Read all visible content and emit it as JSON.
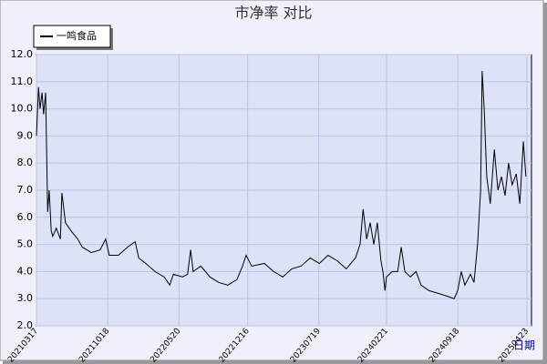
{
  "chart_data": {
    "type": "line",
    "title": "市净率  对比",
    "x_label": "日期",
    "x": [
      0,
      4,
      7,
      11,
      14,
      18,
      22,
      25,
      29,
      32,
      39,
      47,
      50,
      57,
      68,
      81,
      90,
      108,
      125,
      136,
      143,
      161,
      179,
      194,
      201,
      215,
      233,
      251,
      262,
      269,
      287,
      297,
      303,
      308,
      323,
      341,
      358,
      376,
      394,
      405,
      412,
      423,
      448,
      466,
      484,
      502,
      520,
      538,
      556,
      573,
      591,
      609,
      627,
      636,
      642,
      649,
      656,
      663,
      670,
      677,
      681,
      685,
      688,
      699,
      710,
      717,
      724,
      735,
      746,
      756,
      771,
      789,
      806,
      821,
      828,
      835,
      842,
      853,
      860,
      867,
      873,
      876,
      880,
      885,
      892,
      900,
      907,
      914,
      921,
      928,
      935,
      943,
      950,
      957,
      962
    ],
    "series": [
      {
        "name": "一鸣食品",
        "color": "#000000",
        "values": [
          9.0,
          10.8,
          10.0,
          10.6,
          9.8,
          10.6,
          6.2,
          7.0,
          5.5,
          5.3,
          5.6,
          5.2,
          6.9,
          5.8,
          5.5,
          5.2,
          4.9,
          4.7,
          4.8,
          5.2,
          4.6,
          4.6,
          4.9,
          5.1,
          4.5,
          4.3,
          4.0,
          3.8,
          3.5,
          3.9,
          3.8,
          3.9,
          4.8,
          4.0,
          4.2,
          3.8,
          3.6,
          3.5,
          3.7,
          4.2,
          4.6,
          4.2,
          4.3,
          4.0,
          3.8,
          4.1,
          4.2,
          4.5,
          4.3,
          4.6,
          4.4,
          4.1,
          4.5,
          5.0,
          6.3,
          5.2,
          5.8,
          5.0,
          5.8,
          4.4,
          4.0,
          3.3,
          3.8,
          4.0,
          4.0,
          4.9,
          4.0,
          3.8,
          4.0,
          3.5,
          3.3,
          3.2,
          3.1,
          3.0,
          3.3,
          4.0,
          3.5,
          3.9,
          3.6,
          5.0,
          7.0,
          11.4,
          10.0,
          7.5,
          6.5,
          8.5,
          7.0,
          7.5,
          6.8,
          8.0,
          7.2,
          7.6,
          6.5,
          8.8,
          7.5
        ]
      }
    ],
    "xlim": [
      0,
      973
    ],
    "xticks": [
      {
        "value": 0,
        "label": "20210317"
      },
      {
        "value": 140,
        "label": "20211018"
      },
      {
        "value": 280,
        "label": "20220520"
      },
      {
        "value": 415,
        "label": "20221216"
      },
      {
        "value": 555,
        "label": "20230719"
      },
      {
        "value": 688,
        "label": "20240221"
      },
      {
        "value": 828,
        "label": "20240918"
      },
      {
        "value": 964,
        "label": "20250423"
      }
    ],
    "ylim": [
      2,
      12
    ],
    "yticks": [
      {
        "value": 2,
        "label": "2.0"
      },
      {
        "value": 3,
        "label": "3.0"
      },
      {
        "value": 4,
        "label": "4.0"
      },
      {
        "value": 5,
        "label": "5.0"
      },
      {
        "value": 6,
        "label": "6.0"
      },
      {
        "value": 7,
        "label": "7.0"
      },
      {
        "value": 8,
        "label": "8.0"
      },
      {
        "value": 9,
        "label": "9.0"
      },
      {
        "value": 10,
        "label": "10.0"
      },
      {
        "value": 11,
        "label": "11.0"
      },
      {
        "value": 12,
        "label": "12.0"
      }
    ],
    "grid": true
  }
}
